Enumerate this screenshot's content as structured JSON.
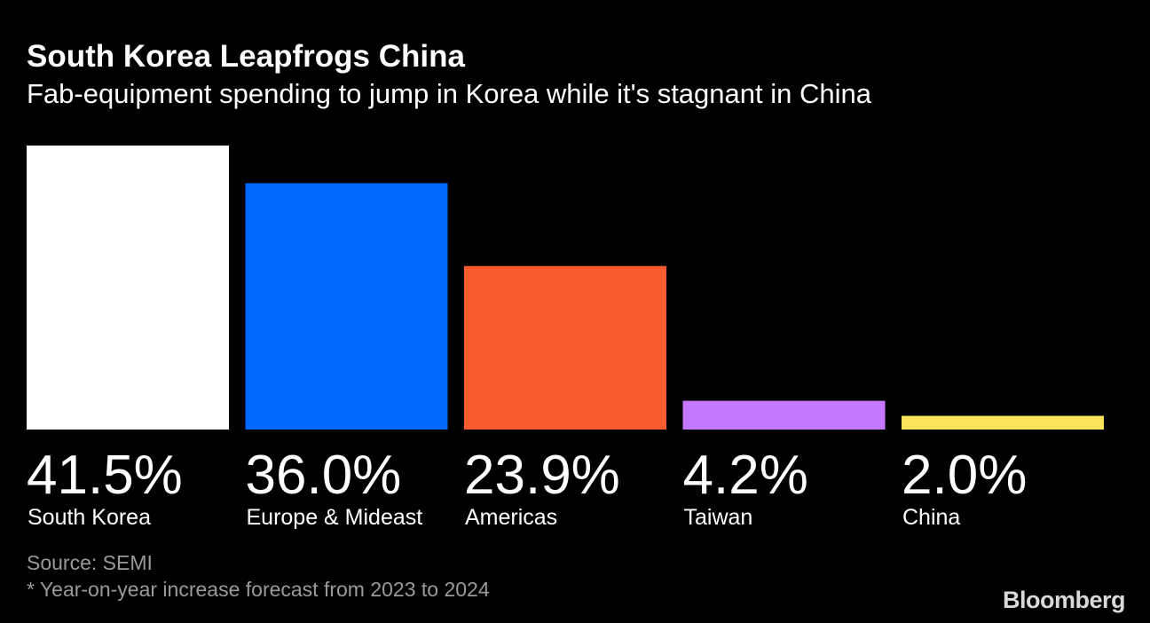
{
  "header": {
    "title": "South Korea Leapfrogs China",
    "subtitle": "Fab-equipment spending to jump in Korea while it's stagnant in China"
  },
  "chart_data": {
    "type": "bar",
    "categories": [
      "South Korea",
      "Europe & Mideast",
      "Americas",
      "Taiwan",
      "China"
    ],
    "values": [
      41.5,
      36.0,
      23.9,
      4.2,
      2.0
    ],
    "value_labels": [
      "41.5%",
      "36.0%",
      "23.9%",
      "4.2%",
      "2.0%"
    ],
    "colors": [
      "#ffffff",
      "#0068ff",
      "#fa5b2e",
      "#c677ff",
      "#fbe35e"
    ],
    "ylim": [
      0,
      41.5
    ],
    "grid": false,
    "legend": "none"
  },
  "footer": {
    "source": "Source: SEMI",
    "note": "* Year-on-year increase forecast from 2023 to 2024"
  },
  "brand": {
    "logo_text": "Bloomberg"
  }
}
